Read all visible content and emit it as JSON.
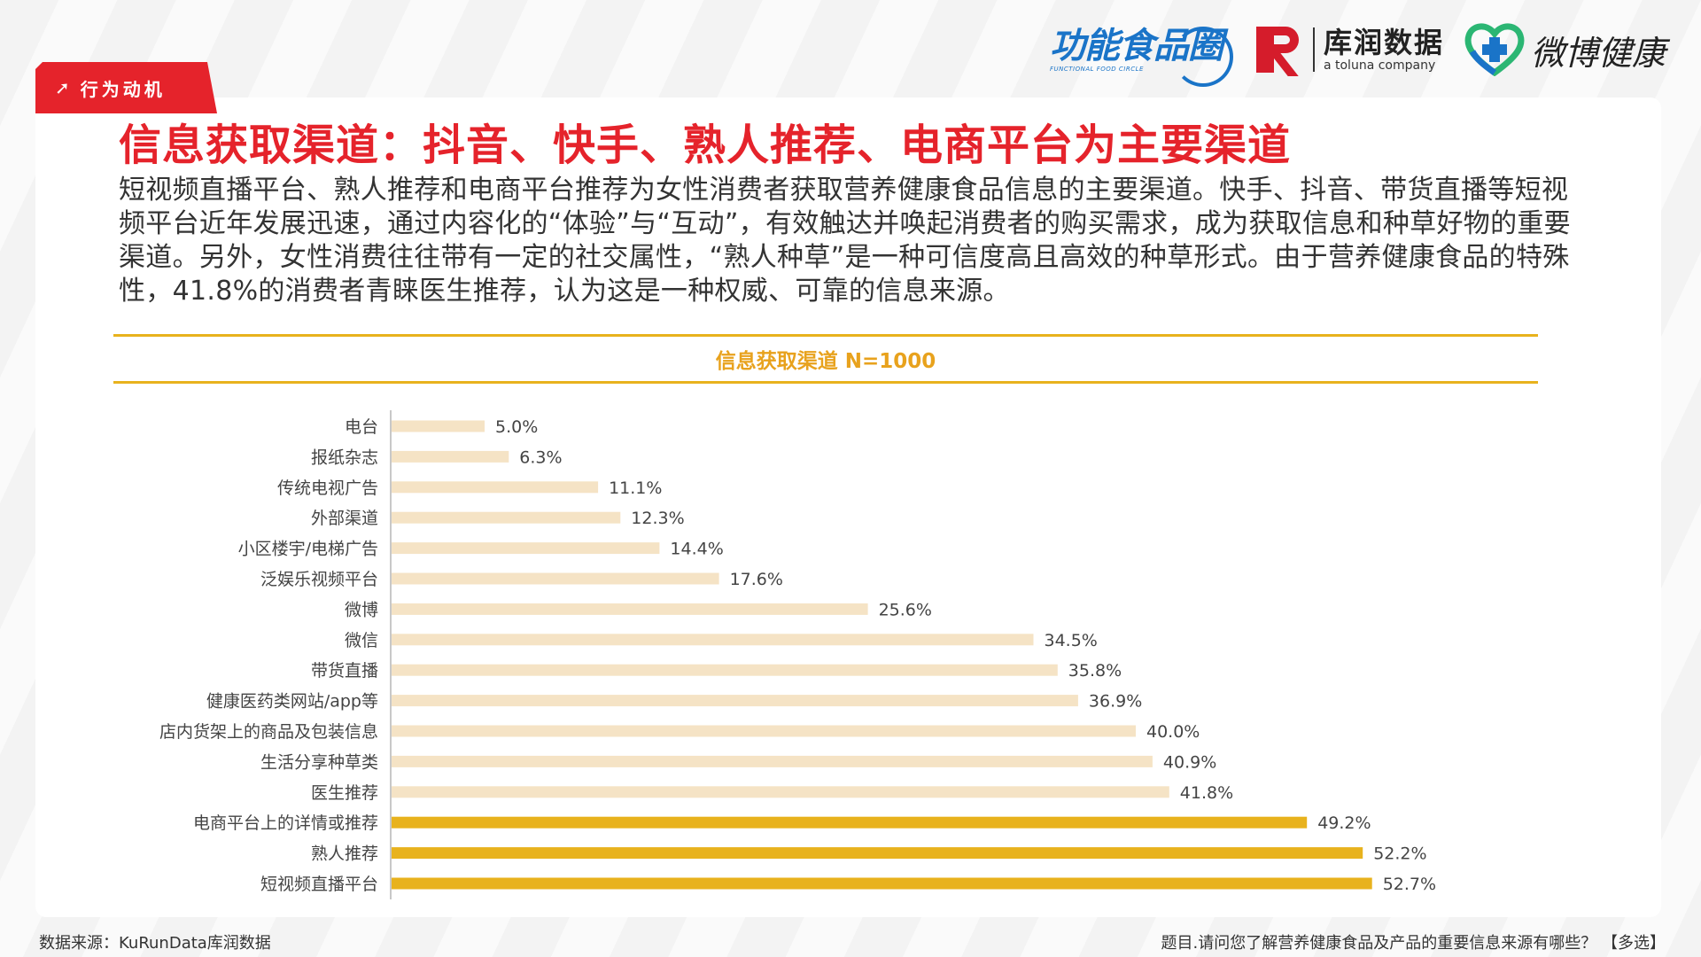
{
  "section_tag": "行为动机",
  "logos": {
    "logo1_text": "功能食品圈",
    "logo1_sub": "FUNCTIONAL FOOD CIRCLE",
    "logo2_text": "库润数据",
    "logo2_sub": "a toluna company",
    "logo3_text": "微博健康"
  },
  "headline": "信息获取渠道：抖音、快手、熟人推荐、电商平台为主要渠道",
  "description": "短视频直播平台、熟人推荐和电商平台推荐为女性消费者获取营养健康食品信息的主要渠道。快手、抖音、带货直播等短视频平台近年发展迅速，通过内容化的“体验”与“互动”，有效触达并唤起消费者的购买需求，成为获取信息和种草好物的重要渠道。另外，女性消费往往带有一定的社交属性，“熟人种草”是一种可信度高且高效的种草形式。由于营养健康食品的特殊性，41.8%的消费者青睐医生推荐，认为这是一种权威、可靠的信息来源。",
  "chart_data": {
    "type": "bar",
    "orientation": "horizontal",
    "title": "信息获取渠道 N=1000",
    "categories": [
      "电台",
      "报纸杂志",
      "传统电视广告",
      "外部渠道",
      "小区楼宇/电梯广告",
      "泛娱乐视频平台",
      "微博",
      "微信",
      "带货直播",
      "健康医药类网站/app等",
      "店内货架上的商品及包装信息",
      "生活分享种草类",
      "医生推荐",
      "电商平台上的详情或推荐",
      "熟人推荐",
      "短视频直播平台"
    ],
    "values": [
      5.0,
      6.3,
      11.1,
      12.3,
      14.4,
      17.6,
      25.6,
      34.5,
      35.8,
      36.9,
      40.0,
      40.9,
      41.8,
      49.2,
      52.2,
      52.7
    ],
    "value_labels": [
      "5.0%",
      "6.3%",
      "11.1%",
      "12.3%",
      "14.4%",
      "17.6%",
      "25.6%",
      "34.5%",
      "35.8%",
      "36.9%",
      "40.0%",
      "40.9%",
      "41.8%",
      "49.2%",
      "52.2%",
      "52.7%"
    ],
    "highlighted": [
      false,
      false,
      false,
      false,
      false,
      false,
      false,
      false,
      false,
      false,
      false,
      false,
      false,
      true,
      true,
      true
    ],
    "colors": {
      "normal": "#f5e3c5",
      "highlight": "#e8b21d",
      "axis": "#c8c8c8"
    }
  },
  "footer": {
    "source": "数据来源：KuRunData库润数据",
    "question": "题目.请问您了解营养健康食品及产品的重要信息来源有哪些？  【多选】"
  },
  "colors": {
    "accent_red": "#e5232b",
    "accent_gold": "#e8b21d",
    "logo_blue": "#1a74c8"
  }
}
